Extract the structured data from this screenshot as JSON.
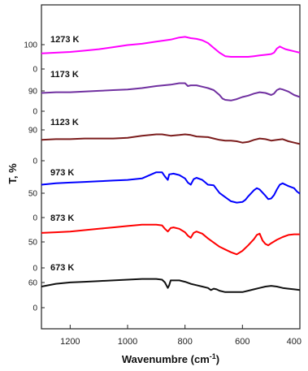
{
  "chart_data": {
    "type": "line",
    "title": "",
    "xlabel": "Wavenumbre (cm",
    "xlabel_sup": "-1",
    "xlabel_close": ")",
    "ylabel": "T, %",
    "xlim": [
      1300,
      400
    ],
    "x_ticks": [
      "1200",
      "1000",
      "800",
      "600",
      "400"
    ],
    "x_tick_values": [
      1200,
      1000,
      800,
      600,
      400
    ],
    "series": [
      {
        "name": "1273 K",
        "color": "#ff00ff",
        "tick_labels": [
          "100",
          "0"
        ],
        "points": [
          [
            1300,
            5
          ],
          [
            1250,
            6
          ],
          [
            1200,
            7
          ],
          [
            1150,
            9
          ],
          [
            1100,
            11
          ],
          [
            1050,
            14
          ],
          [
            1000,
            17
          ],
          [
            950,
            19
          ],
          [
            900,
            22
          ],
          [
            850,
            25
          ],
          [
            820,
            28
          ],
          [
            800,
            29
          ],
          [
            780,
            27
          ],
          [
            760,
            26
          ],
          [
            740,
            24
          ],
          [
            720,
            20
          ],
          [
            700,
            13
          ],
          [
            680,
            6
          ],
          [
            660,
            1
          ],
          [
            640,
            0
          ],
          [
            620,
            0
          ],
          [
            600,
            0
          ],
          [
            580,
            0
          ],
          [
            560,
            1
          ],
          [
            540,
            2
          ],
          [
            520,
            3
          ],
          [
            500,
            4
          ],
          [
            490,
            6
          ],
          [
            480,
            12
          ],
          [
            470,
            15
          ],
          [
            460,
            13
          ],
          [
            450,
            11
          ],
          [
            440,
            10
          ],
          [
            420,
            8
          ],
          [
            400,
            6
          ]
        ]
      },
      {
        "name": "1173 K",
        "color": "#7030a0",
        "tick_labels": [
          "90",
          "0"
        ],
        "points": [
          [
            1300,
            3
          ],
          [
            1250,
            4
          ],
          [
            1200,
            4
          ],
          [
            1150,
            5
          ],
          [
            1100,
            6
          ],
          [
            1050,
            7
          ],
          [
            1000,
            8
          ],
          [
            950,
            10
          ],
          [
            900,
            13
          ],
          [
            850,
            15
          ],
          [
            820,
            17
          ],
          [
            800,
            17
          ],
          [
            790,
            13
          ],
          [
            780,
            14
          ],
          [
            760,
            14
          ],
          [
            740,
            12
          ],
          [
            720,
            10
          ],
          [
            700,
            7
          ],
          [
            680,
            0
          ],
          [
            670,
            -5
          ],
          [
            660,
            -7
          ],
          [
            640,
            -8
          ],
          [
            620,
            -6
          ],
          [
            600,
            -3
          ],
          [
            580,
            -1
          ],
          [
            560,
            2
          ],
          [
            540,
            4
          ],
          [
            520,
            3
          ],
          [
            500,
            0
          ],
          [
            490,
            2
          ],
          [
            480,
            7
          ],
          [
            470,
            9
          ],
          [
            460,
            8
          ],
          [
            440,
            5
          ],
          [
            420,
            0
          ],
          [
            400,
            -3
          ]
        ]
      },
      {
        "name": "1123 K",
        "color": "#7b1c1c",
        "tick_labels": [
          "90",
          "0"
        ],
        "points": [
          [
            1300,
            2
          ],
          [
            1250,
            3
          ],
          [
            1200,
            3
          ],
          [
            1150,
            4
          ],
          [
            1100,
            4
          ],
          [
            1050,
            4
          ],
          [
            1000,
            5
          ],
          [
            950,
            8
          ],
          [
            900,
            10
          ],
          [
            880,
            10
          ],
          [
            850,
            8
          ],
          [
            820,
            9
          ],
          [
            800,
            10
          ],
          [
            780,
            9
          ],
          [
            760,
            7
          ],
          [
            720,
            6
          ],
          [
            700,
            4
          ],
          [
            680,
            2
          ],
          [
            660,
            1
          ],
          [
            640,
            1
          ],
          [
            620,
            0
          ],
          [
            600,
            -2
          ],
          [
            580,
            -1
          ],
          [
            560,
            2
          ],
          [
            540,
            4
          ],
          [
            520,
            3
          ],
          [
            500,
            1
          ],
          [
            480,
            2
          ],
          [
            460,
            3
          ],
          [
            440,
            0
          ],
          [
            420,
            -2
          ],
          [
            400,
            -4
          ]
        ]
      },
      {
        "name": "973 K",
        "color": "#0000ff",
        "tick_labels": [
          "50",
          "0"
        ],
        "points": [
          [
            1300,
            10
          ],
          [
            1250,
            12
          ],
          [
            1200,
            13
          ],
          [
            1150,
            14
          ],
          [
            1100,
            15
          ],
          [
            1050,
            16
          ],
          [
            1000,
            17
          ],
          [
            950,
            19
          ],
          [
            900,
            28
          ],
          [
            880,
            28
          ],
          [
            870,
            22
          ],
          [
            860,
            17
          ],
          [
            855,
            25
          ],
          [
            840,
            26
          ],
          [
            820,
            24
          ],
          [
            800,
            19
          ],
          [
            790,
            13
          ],
          [
            780,
            10
          ],
          [
            770,
            18
          ],
          [
            760,
            20
          ],
          [
            740,
            17
          ],
          [
            720,
            10
          ],
          [
            700,
            9
          ],
          [
            680,
            -2
          ],
          [
            660,
            -8
          ],
          [
            640,
            -14
          ],
          [
            620,
            -16
          ],
          [
            600,
            -15
          ],
          [
            590,
            -12
          ],
          [
            580,
            -7
          ],
          [
            560,
            2
          ],
          [
            550,
            5
          ],
          [
            540,
            3
          ],
          [
            520,
            -6
          ],
          [
            510,
            -11
          ],
          [
            500,
            -10
          ],
          [
            490,
            -5
          ],
          [
            480,
            3
          ],
          [
            470,
            10
          ],
          [
            460,
            12
          ],
          [
            440,
            8
          ],
          [
            420,
            5
          ],
          [
            410,
            0
          ],
          [
            400,
            -3
          ]
        ]
      },
      {
        "name": "873 K",
        "color": "#ff0000",
        "tick_labels": [
          "50",
          "0"
        ],
        "points": [
          [
            1300,
            6
          ],
          [
            1250,
            7
          ],
          [
            1200,
            8
          ],
          [
            1150,
            10
          ],
          [
            1100,
            12
          ],
          [
            1050,
            14
          ],
          [
            1000,
            16
          ],
          [
            950,
            18
          ],
          [
            900,
            18
          ],
          [
            880,
            17
          ],
          [
            870,
            12
          ],
          [
            860,
            8
          ],
          [
            850,
            13
          ],
          [
            840,
            14
          ],
          [
            820,
            12
          ],
          [
            800,
            7
          ],
          [
            790,
            2
          ],
          [
            780,
            -1
          ],
          [
            770,
            6
          ],
          [
            760,
            8
          ],
          [
            740,
            5
          ],
          [
            720,
            -2
          ],
          [
            700,
            -8
          ],
          [
            680,
            -14
          ],
          [
            660,
            -18
          ],
          [
            640,
            -22
          ],
          [
            620,
            -25
          ],
          [
            600,
            -20
          ],
          [
            580,
            -12
          ],
          [
            560,
            -3
          ],
          [
            550,
            3
          ],
          [
            540,
            5
          ],
          [
            530,
            -5
          ],
          [
            520,
            -10
          ],
          [
            510,
            -12
          ],
          [
            500,
            -9
          ],
          [
            480,
            -4
          ],
          [
            460,
            0
          ],
          [
            440,
            3
          ],
          [
            420,
            4
          ],
          [
            400,
            4
          ]
        ]
      },
      {
        "name": "673 K",
        "color": "#111111",
        "tick_labels": [
          "60",
          "0"
        ],
        "points": [
          [
            1300,
            0
          ],
          [
            1250,
            4
          ],
          [
            1200,
            6
          ],
          [
            1150,
            7
          ],
          [
            1100,
            8
          ],
          [
            1050,
            9
          ],
          [
            1000,
            10
          ],
          [
            950,
            11
          ],
          [
            900,
            11
          ],
          [
            880,
            10
          ],
          [
            870,
            6
          ],
          [
            860,
            -2
          ],
          [
            855,
            2
          ],
          [
            850,
            9
          ],
          [
            820,
            9
          ],
          [
            800,
            7
          ],
          [
            780,
            4
          ],
          [
            760,
            2
          ],
          [
            740,
            0
          ],
          [
            720,
            -2
          ],
          [
            710,
            -5
          ],
          [
            700,
            -3
          ],
          [
            690,
            -4
          ],
          [
            680,
            -6
          ],
          [
            660,
            -8
          ],
          [
            640,
            -8
          ],
          [
            620,
            -8
          ],
          [
            600,
            -8
          ],
          [
            580,
            -6
          ],
          [
            560,
            -4
          ],
          [
            540,
            -2
          ],
          [
            520,
            0
          ],
          [
            500,
            1
          ],
          [
            480,
            0
          ],
          [
            460,
            -2
          ],
          [
            440,
            -3
          ],
          [
            420,
            -4
          ],
          [
            400,
            -5
          ]
        ]
      }
    ]
  }
}
